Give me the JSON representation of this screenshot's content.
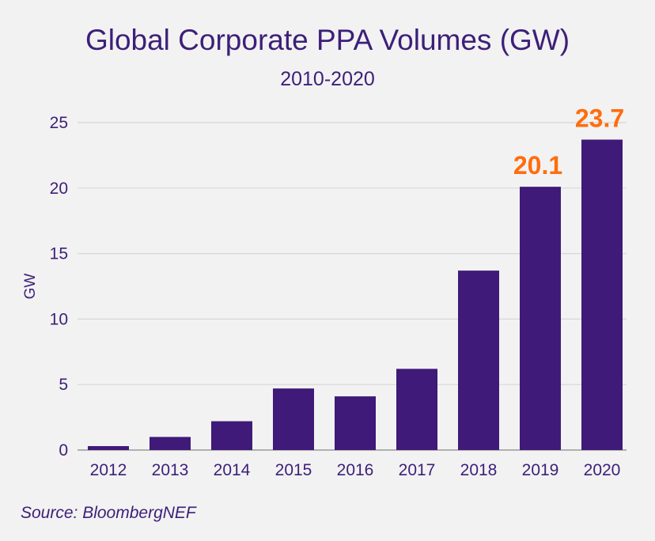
{
  "chart_data": {
    "type": "bar",
    "title": "Global Corporate PPA Volumes (GW)",
    "subtitle": "2010-2020",
    "ylabel": "GW",
    "xlabel": "",
    "categories": [
      "2012",
      "2013",
      "2014",
      "2015",
      "2016",
      "2017",
      "2018",
      "2019",
      "2020"
    ],
    "values": [
      0.3,
      1.0,
      2.2,
      4.7,
      4.1,
      6.2,
      13.7,
      20.1,
      23.7
    ],
    "ylim": [
      0,
      25
    ],
    "yticks": [
      0,
      5,
      10,
      15,
      20,
      25
    ],
    "grid": true,
    "data_labels": [
      {
        "category": "2019",
        "text": "20.1"
      },
      {
        "category": "2020",
        "text": "23.7"
      }
    ],
    "bar_color": "#3f1a78",
    "label_color": "#ff6d0e",
    "text_color": "#3d1f78",
    "source": "Source: BloombergNEF"
  }
}
